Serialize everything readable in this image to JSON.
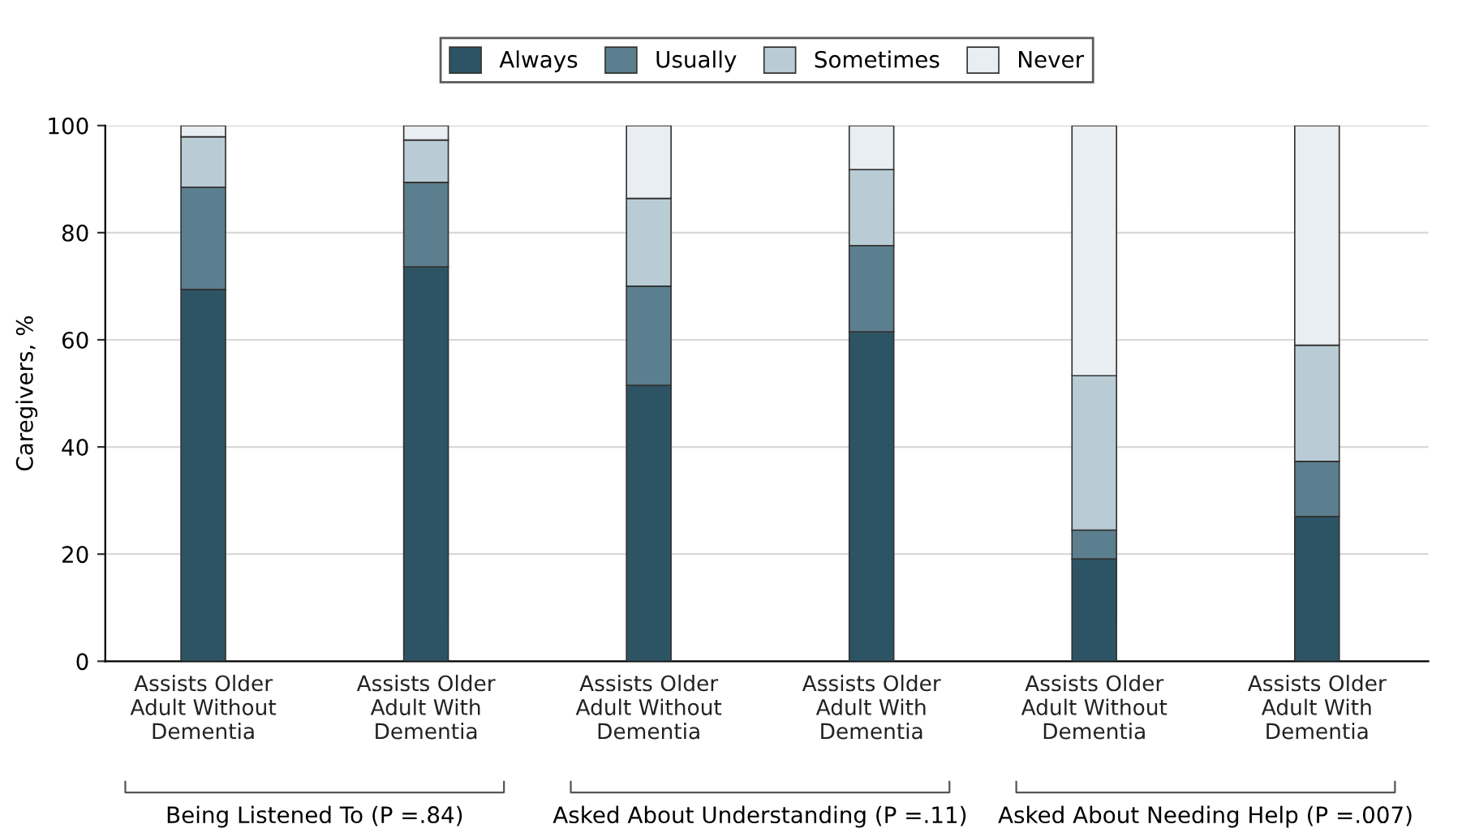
{
  "chart_data": {
    "type": "bar",
    "stacked": true,
    "ylabel": "Caregivers, %",
    "categories": [
      "Assists Older\nAdult Without\nDementia",
      "Assists Older\nAdult With\nDementia",
      "Assists Older\nAdult Without\nDementia",
      "Assists Older\nAdult With\nDementia",
      "Assists Older\nAdult Without\nDementia",
      "Assists Older\nAdult With\nDementia"
    ],
    "series": [
      {
        "name": "Always",
        "color": "#2d5464",
        "values": [
          69.4,
          73.6,
          51.5,
          61.5,
          19.1,
          27.0
        ]
      },
      {
        "name": "Usually",
        "color": "#5b7f8e",
        "values": [
          19.1,
          15.8,
          18.5,
          16.1,
          5.4,
          10.3
        ]
      },
      {
        "name": "Sometimes",
        "color": "#b9ccd5",
        "values": [
          9.4,
          7.9,
          16.4,
          14.2,
          28.8,
          21.7
        ]
      },
      {
        "name": "Never",
        "color": "#e8eef2",
        "values": [
          2.1,
          2.7,
          13.6,
          8.2,
          46.7,
          41.0
        ]
      }
    ],
    "ylim": [
      0,
      100
    ],
    "yticks": [
      0,
      20,
      40,
      60,
      80,
      100
    ],
    "grid": "y",
    "legend": "top",
    "annotations": [
      "Being Listened To (P =.84)",
      "Asked About Understanding (P =.11)",
      "Asked About Needing Help (P =.007)"
    ]
  }
}
